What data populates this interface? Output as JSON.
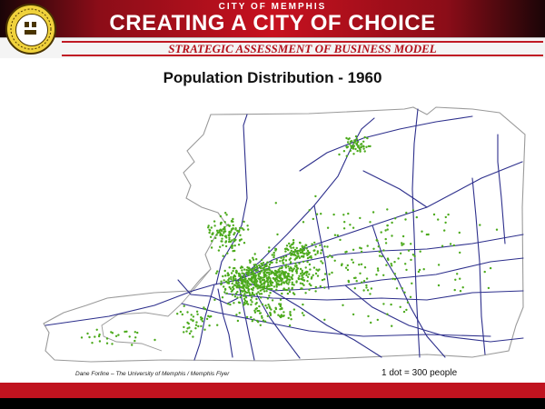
{
  "header": {
    "city_label": "CITY OF MEMPHIS",
    "title": "CREATING A CITY OF CHOICE",
    "subtitle": "STRATEGIC ASSESSMENT OF BUSINESS MODEL",
    "seal_icon": "city-seal-icon",
    "accent_color": "#c0131f"
  },
  "map": {
    "title": "Population Distribution - 1960",
    "credit": "Dane Forline – The University of Memphis / Memphis Flyer",
    "legend": "1 dot = 300 people",
    "dot_color": "#4caa1c",
    "road_color": "#2d2f8c",
    "outline_color": "#9a9a9a"
  }
}
